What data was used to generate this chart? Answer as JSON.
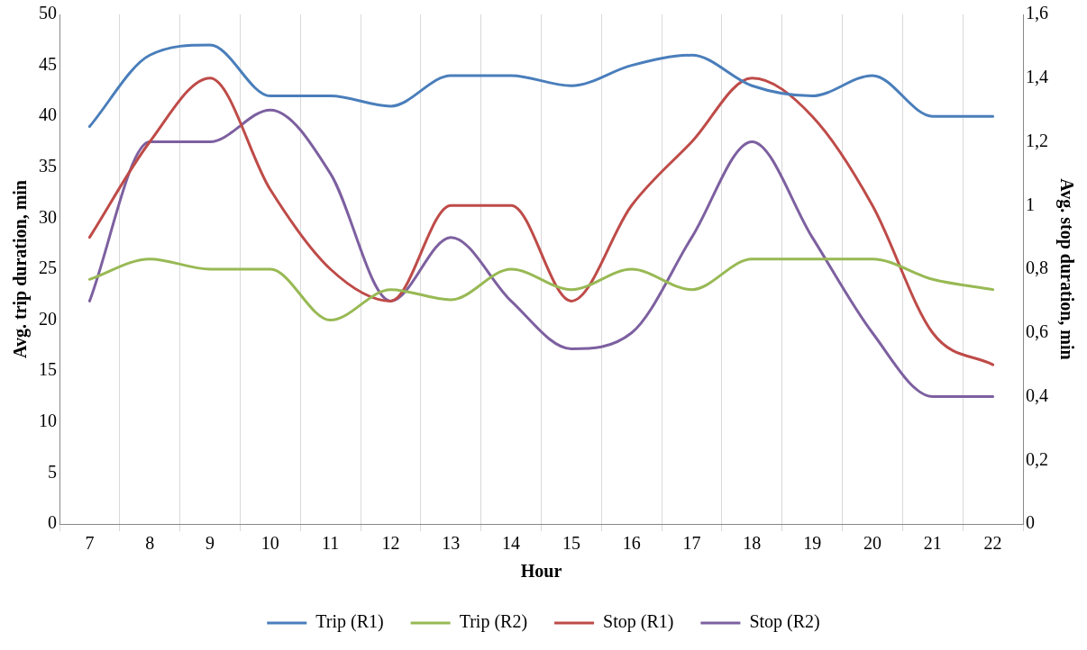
{
  "chart_data": {
    "type": "line",
    "xlabel": "Hour",
    "ylabel": "Avg. trip duration, min",
    "y2label": "Avg. stop duration, min",
    "categories": [
      "7",
      "8",
      "9",
      "10",
      "11",
      "12",
      "13",
      "14",
      "15",
      "16",
      "17",
      "18",
      "19",
      "20",
      "21",
      "22"
    ],
    "ylim": [
      0,
      50
    ],
    "yticks": [
      0,
      5,
      10,
      15,
      20,
      25,
      30,
      35,
      40,
      45,
      50
    ],
    "y2lim": [
      0,
      1.6
    ],
    "y2ticks": [
      0,
      {
        "value": 0.2,
        "label": "0,2"
      },
      {
        "value": 0.4,
        "label": "0,4"
      },
      {
        "value": 0.6,
        "label": "0,6"
      },
      {
        "value": 0.8,
        "label": "0,8"
      },
      1,
      {
        "value": 1.2,
        "label": "1,2"
      },
      {
        "value": 1.4,
        "label": "1,4"
      },
      {
        "value": 1.6,
        "label": "1,6"
      }
    ],
    "grid": "x",
    "legend": "bottom",
    "marker": "none",
    "line_style": "solid",
    "series": [
      {
        "name": "Trip (R1)",
        "color": "#4a7ebb",
        "values": [
          39,
          46,
          47,
          42,
          42,
          41,
          44,
          44,
          43,
          45,
          46,
          43,
          42,
          44,
          40,
          40
        ]
      },
      {
        "name": "Trip (R2)",
        "color": "#98b954",
        "values": [
          24,
          26,
          25,
          25,
          20,
          23,
          22,
          25,
          23,
          25,
          23,
          26,
          26,
          26,
          24,
          23
        ]
      },
      {
        "name": "Stop (R1)",
        "color": "#be4b48",
        "axis": "y2",
        "values": [
          0.9,
          1.2,
          1.4,
          1.05,
          0.8,
          0.7,
          1.0,
          1.0,
          0.7,
          1.0,
          1.2,
          1.4,
          1.28,
          1.0,
          0.6,
          0.5
        ]
      },
      {
        "name": "Stop (R2)",
        "color": "#7d60a0",
        "axis": "y2",
        "values": [
          0.7,
          1.2,
          1.2,
          1.3,
          1.1,
          0.7,
          0.9,
          0.7,
          0.55,
          0.6,
          0.9,
          1.2,
          0.9,
          0.6,
          0.4,
          0.4
        ]
      }
    ]
  }
}
